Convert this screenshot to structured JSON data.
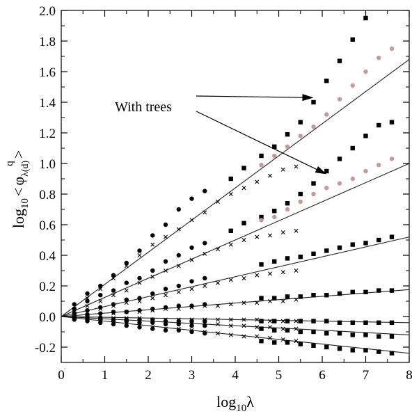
{
  "chart_data": {
    "type": "scatter",
    "title": "",
    "xlabel": {
      "prefix": "log",
      "subscript": "10",
      "symbol": "λ"
    },
    "ylabel": {
      "prefix": "log",
      "subscript": "10",
      "lt": "<",
      "phi": "φ",
      "phi_sub": "λ(d)",
      "superscript": "q",
      "gt": ">"
    },
    "xlim": [
      0,
      8
    ],
    "ylim": [
      -0.3,
      2.0
    ],
    "x_ticks": [
      "0",
      "1",
      "2",
      "3",
      "4",
      "5",
      "6",
      "7",
      "8"
    ],
    "y_ticks": [
      "-0.2",
      "0.0",
      "0.2",
      "0.4",
      "0.6",
      "0.8",
      "1.0",
      "1.2",
      "1.4",
      "1.6",
      "1.8",
      "2.0"
    ],
    "grid": false,
    "annotation": {
      "text": "With trees",
      "arrow_targets": [
        [
          5.8,
          1.43
        ],
        [
          6.1,
          0.93
        ]
      ]
    },
    "fit_lines": [
      {
        "slope": 0.21
      },
      {
        "slope": 0.125
      },
      {
        "slope": 0.065
      },
      {
        "slope": 0.022
      },
      {
        "slope": -0.005
      },
      {
        "slope": -0.015
      },
      {
        "slope": -0.03
      }
    ],
    "series": [
      {
        "marker": "circle",
        "color": "#000000",
        "points": [
          [
            0.3,
            0.08
          ],
          [
            0.6,
            0.15
          ],
          [
            0.9,
            0.2
          ],
          [
            1.2,
            0.27
          ],
          [
            1.5,
            0.35
          ],
          [
            1.8,
            0.43
          ],
          [
            2.1,
            0.53
          ],
          [
            2.4,
            0.6
          ],
          [
            2.7,
            0.7
          ],
          [
            3.0,
            0.77
          ],
          [
            3.3,
            0.82
          ],
          [
            0.3,
            0.05
          ],
          [
            0.6,
            0.1
          ],
          [
            0.9,
            0.14
          ],
          [
            1.2,
            0.17
          ],
          [
            1.5,
            0.22
          ],
          [
            1.8,
            0.25
          ],
          [
            2.1,
            0.3
          ],
          [
            2.4,
            0.36
          ],
          [
            2.7,
            0.4
          ],
          [
            3.0,
            0.45
          ],
          [
            3.3,
            0.48
          ],
          [
            0.3,
            0.02
          ],
          [
            0.6,
            0.04
          ],
          [
            0.9,
            0.06
          ],
          [
            1.2,
            0.08
          ],
          [
            1.5,
            0.11
          ],
          [
            1.8,
            0.12
          ],
          [
            2.1,
            0.15
          ],
          [
            2.4,
            0.18
          ],
          [
            2.7,
            0.2
          ],
          [
            3.0,
            0.23
          ],
          [
            3.3,
            0.25
          ],
          [
            0.3,
            0.0
          ],
          [
            0.6,
            0.01
          ],
          [
            0.9,
            0.02
          ],
          [
            1.2,
            0.03
          ],
          [
            1.5,
            0.03
          ],
          [
            1.8,
            0.04
          ],
          [
            2.1,
            0.05
          ],
          [
            2.4,
            0.06
          ],
          [
            2.7,
            0.07
          ],
          [
            3.0,
            0.07
          ],
          [
            3.3,
            0.08
          ],
          [
            0.3,
            -0.01
          ],
          [
            0.6,
            -0.01
          ],
          [
            0.9,
            -0.01
          ],
          [
            1.2,
            -0.02
          ],
          [
            1.5,
            -0.02
          ],
          [
            1.8,
            -0.02
          ],
          [
            2.1,
            -0.02
          ],
          [
            2.4,
            -0.03
          ],
          [
            2.7,
            -0.03
          ],
          [
            3.0,
            -0.03
          ],
          [
            3.3,
            -0.03
          ],
          [
            0.3,
            -0.01
          ],
          [
            0.6,
            -0.02
          ],
          [
            0.9,
            -0.02
          ],
          [
            1.2,
            -0.03
          ],
          [
            1.5,
            -0.03
          ],
          [
            1.8,
            -0.04
          ],
          [
            2.1,
            -0.04
          ],
          [
            2.4,
            -0.05
          ],
          [
            2.7,
            -0.05
          ],
          [
            3.0,
            -0.06
          ],
          [
            3.3,
            -0.06
          ],
          [
            0.3,
            -0.02
          ],
          [
            0.6,
            -0.03
          ],
          [
            0.9,
            -0.04
          ],
          [
            1.2,
            -0.05
          ],
          [
            1.5,
            -0.06
          ],
          [
            1.8,
            -0.07
          ],
          [
            2.1,
            -0.08
          ],
          [
            2.4,
            -0.09
          ],
          [
            2.7,
            -0.09
          ],
          [
            3.0,
            -0.1
          ],
          [
            3.3,
            -0.11
          ]
        ]
      },
      {
        "marker": "cross",
        "color": "#000000",
        "points": [
          [
            0.3,
            0.05
          ],
          [
            0.6,
            0.12
          ],
          [
            0.9,
            0.18
          ],
          [
            1.2,
            0.25
          ],
          [
            1.5,
            0.33
          ],
          [
            1.8,
            0.4
          ],
          [
            2.1,
            0.47
          ],
          [
            2.4,
            0.52
          ],
          [
            2.7,
            0.57
          ],
          [
            3.0,
            0.63
          ],
          [
            3.3,
            0.68
          ],
          [
            3.6,
            0.75
          ],
          [
            3.9,
            0.8
          ],
          [
            4.2,
            0.84
          ],
          [
            4.5,
            0.88
          ],
          [
            4.8,
            0.92
          ],
          [
            5.1,
            0.96
          ],
          [
            5.4,
            0.98
          ],
          [
            0.3,
            0.03
          ],
          [
            0.6,
            0.07
          ],
          [
            0.9,
            0.1
          ],
          [
            1.2,
            0.14
          ],
          [
            1.5,
            0.17
          ],
          [
            1.8,
            0.22
          ],
          [
            2.1,
            0.26
          ],
          [
            2.4,
            0.3
          ],
          [
            2.7,
            0.33
          ],
          [
            3.0,
            0.37
          ],
          [
            3.3,
            0.41
          ],
          [
            3.6,
            0.44
          ],
          [
            3.9,
            0.47
          ],
          [
            4.2,
            0.5
          ],
          [
            4.5,
            0.52
          ],
          [
            4.8,
            0.53
          ],
          [
            5.1,
            0.55
          ],
          [
            5.4,
            0.56
          ],
          [
            0.3,
            0.02
          ],
          [
            0.6,
            0.03
          ],
          [
            0.9,
            0.05
          ],
          [
            1.2,
            0.07
          ],
          [
            1.5,
            0.09
          ],
          [
            1.8,
            0.1
          ],
          [
            2.1,
            0.12
          ],
          [
            2.4,
            0.14
          ],
          [
            2.7,
            0.16
          ],
          [
            3.0,
            0.18
          ],
          [
            3.3,
            0.2
          ],
          [
            3.6,
            0.22
          ],
          [
            3.9,
            0.24
          ],
          [
            4.2,
            0.25
          ],
          [
            4.5,
            0.27
          ],
          [
            4.8,
            0.28
          ],
          [
            5.1,
            0.29
          ],
          [
            5.4,
            0.3
          ],
          [
            0.3,
            0.0
          ],
          [
            0.6,
            0.01
          ],
          [
            0.9,
            0.01
          ],
          [
            1.2,
            0.02
          ],
          [
            1.5,
            0.03
          ],
          [
            1.8,
            0.03
          ],
          [
            2.1,
            0.04
          ],
          [
            2.4,
            0.05
          ],
          [
            2.7,
            0.05
          ],
          [
            3.0,
            0.06
          ],
          [
            3.3,
            0.07
          ],
          [
            3.6,
            0.07
          ],
          [
            3.9,
            0.08
          ],
          [
            4.2,
            0.09
          ],
          [
            4.5,
            0.09
          ],
          [
            4.8,
            0.1
          ],
          [
            5.1,
            0.1
          ],
          [
            5.4,
            0.11
          ],
          [
            0.3,
            -0.01
          ],
          [
            0.6,
            -0.01
          ],
          [
            0.9,
            -0.01
          ],
          [
            1.2,
            -0.01
          ],
          [
            1.5,
            -0.01
          ],
          [
            1.8,
            -0.01
          ],
          [
            2.1,
            -0.02
          ],
          [
            2.4,
            -0.02
          ],
          [
            2.7,
            -0.02
          ],
          [
            3.0,
            -0.02
          ],
          [
            3.3,
            -0.02
          ],
          [
            3.6,
            -0.02
          ],
          [
            3.9,
            -0.02
          ],
          [
            4.2,
            -0.02
          ],
          [
            4.5,
            -0.02
          ],
          [
            4.8,
            -0.03
          ],
          [
            5.1,
            -0.03
          ],
          [
            5.4,
            -0.03
          ],
          [
            0.3,
            -0.01
          ],
          [
            0.6,
            -0.01
          ],
          [
            0.9,
            -0.02
          ],
          [
            1.2,
            -0.02
          ],
          [
            1.5,
            -0.03
          ],
          [
            1.8,
            -0.03
          ],
          [
            2.1,
            -0.03
          ],
          [
            2.4,
            -0.04
          ],
          [
            2.7,
            -0.04
          ],
          [
            3.0,
            -0.05
          ],
          [
            3.3,
            -0.05
          ],
          [
            3.6,
            -0.05
          ],
          [
            3.9,
            -0.06
          ],
          [
            4.2,
            -0.06
          ],
          [
            4.5,
            -0.07
          ],
          [
            4.8,
            -0.07
          ],
          [
            5.1,
            -0.08
          ],
          [
            5.4,
            -0.08
          ],
          [
            0.3,
            -0.01
          ],
          [
            0.6,
            -0.02
          ],
          [
            0.9,
            -0.03
          ],
          [
            1.2,
            -0.04
          ],
          [
            1.5,
            -0.05
          ],
          [
            1.8,
            -0.06
          ],
          [
            2.1,
            -0.07
          ],
          [
            2.4,
            -0.08
          ],
          [
            2.7,
            -0.08
          ],
          [
            3.0,
            -0.09
          ],
          [
            3.3,
            -0.1
          ],
          [
            3.6,
            -0.11
          ],
          [
            3.9,
            -0.12
          ],
          [
            4.2,
            -0.13
          ],
          [
            4.5,
            -0.13
          ],
          [
            4.8,
            -0.14
          ],
          [
            5.1,
            -0.15
          ],
          [
            5.4,
            -0.16
          ]
        ]
      },
      {
        "marker": "square",
        "color": "#000000",
        "points": [
          [
            3.9,
            0.9
          ],
          [
            4.2,
            0.97
          ],
          [
            4.6,
            1.05
          ],
          [
            4.9,
            1.11
          ],
          [
            5.2,
            1.19
          ],
          [
            5.5,
            1.27
          ],
          [
            5.8,
            1.4
          ],
          [
            6.1,
            1.54
          ],
          [
            6.4,
            1.67
          ],
          [
            6.7,
            1.81
          ],
          [
            7.0,
            1.95
          ],
          [
            3.9,
            0.56
          ],
          [
            4.2,
            0.61
          ],
          [
            4.6,
            0.65
          ],
          [
            4.9,
            0.69
          ],
          [
            5.2,
            0.74
          ],
          [
            5.5,
            0.8
          ],
          [
            5.8,
            0.87
          ],
          [
            6.1,
            0.95
          ],
          [
            6.4,
            1.03
          ],
          [
            6.7,
            1.1
          ],
          [
            7.0,
            1.18
          ],
          [
            7.3,
            1.25
          ],
          [
            7.6,
            1.27
          ],
          [
            4.6,
            0.34
          ],
          [
            4.9,
            0.36
          ],
          [
            5.2,
            0.38
          ],
          [
            5.5,
            0.39
          ],
          [
            5.8,
            0.41
          ],
          [
            6.1,
            0.43
          ],
          [
            6.4,
            0.45
          ],
          [
            6.7,
            0.47
          ],
          [
            7.0,
            0.48
          ],
          [
            7.3,
            0.5
          ],
          [
            7.6,
            0.52
          ],
          [
            4.6,
            0.12
          ],
          [
            4.9,
            0.12
          ],
          [
            5.2,
            0.13
          ],
          [
            5.5,
            0.13
          ],
          [
            5.8,
            0.14
          ],
          [
            6.1,
            0.14
          ],
          [
            6.4,
            0.15
          ],
          [
            6.7,
            0.16
          ],
          [
            7.0,
            0.16
          ],
          [
            7.3,
            0.17
          ],
          [
            7.6,
            0.17
          ],
          [
            4.6,
            -0.03
          ],
          [
            4.9,
            -0.03
          ],
          [
            5.2,
            -0.03
          ],
          [
            5.5,
            -0.03
          ],
          [
            5.8,
            -0.03
          ],
          [
            6.1,
            -0.03
          ],
          [
            6.4,
            -0.04
          ],
          [
            6.7,
            -0.04
          ],
          [
            7.0,
            -0.04
          ],
          [
            7.3,
            -0.04
          ],
          [
            7.6,
            -0.04
          ],
          [
            4.6,
            -0.08
          ],
          [
            4.9,
            -0.09
          ],
          [
            5.2,
            -0.09
          ],
          [
            5.5,
            -0.1
          ],
          [
            5.8,
            -0.1
          ],
          [
            6.1,
            -0.11
          ],
          [
            6.4,
            -0.11
          ],
          [
            6.7,
            -0.12
          ],
          [
            7.0,
            -0.12
          ],
          [
            7.3,
            -0.13
          ],
          [
            7.6,
            -0.13
          ],
          [
            4.6,
            -0.16
          ],
          [
            4.9,
            -0.17
          ],
          [
            5.2,
            -0.17
          ],
          [
            5.5,
            -0.18
          ],
          [
            5.8,
            -0.19
          ],
          [
            6.1,
            -0.2
          ],
          [
            6.4,
            -0.21
          ],
          [
            6.7,
            -0.22
          ],
          [
            7.0,
            -0.22
          ],
          [
            7.3,
            -0.23
          ],
          [
            7.6,
            -0.24
          ]
        ]
      },
      {
        "marker": "circle",
        "color": "#c79a9a",
        "points": [
          [
            4.6,
            0.99
          ],
          [
            4.9,
            1.05
          ],
          [
            5.2,
            1.11
          ],
          [
            5.5,
            1.18
          ],
          [
            5.8,
            1.24
          ],
          [
            6.1,
            1.32
          ],
          [
            6.4,
            1.42
          ],
          [
            6.7,
            1.51
          ],
          [
            7.0,
            1.6
          ],
          [
            7.3,
            1.69
          ],
          [
            7.6,
            1.75
          ],
          [
            4.6,
            0.63
          ],
          [
            4.9,
            0.65
          ],
          [
            5.2,
            0.7
          ],
          [
            5.5,
            0.75
          ],
          [
            5.8,
            0.8
          ],
          [
            6.1,
            0.84
          ],
          [
            6.4,
            0.87
          ],
          [
            6.7,
            0.9
          ],
          [
            7.0,
            0.95
          ],
          [
            7.3,
            0.99
          ],
          [
            7.6,
            1.03
          ]
        ]
      }
    ]
  }
}
